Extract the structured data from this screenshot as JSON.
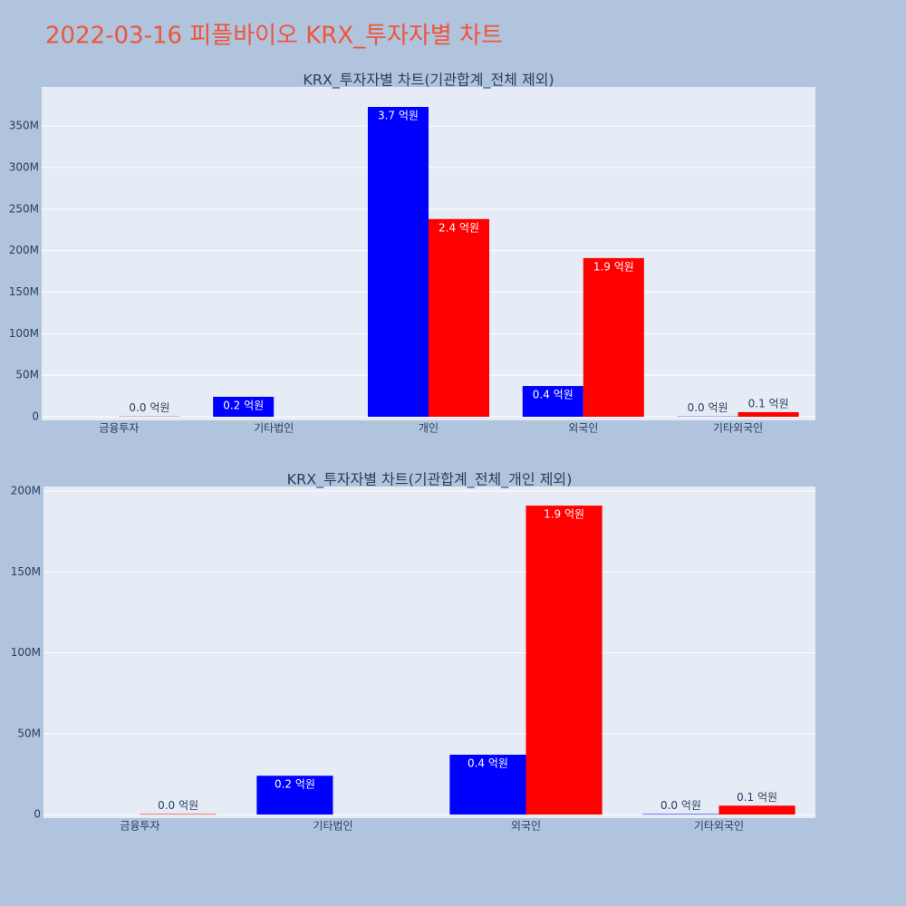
{
  "title": "2022-03-16 피플바이오 KRX_투자자별 차트",
  "chart_data": [
    {
      "type": "bar",
      "title": "KRX_투자자별 차트(기관합계_전체 제외)",
      "categories": [
        "금융투자",
        "기타법인",
        "개인",
        "외국인",
        "기타외국인"
      ],
      "series": [
        {
          "color": "#0000ff",
          "values": [
            null,
            24,
            373,
            37,
            0.3
          ],
          "value_labels": [
            null,
            "0.2 억원",
            "3.7 억원",
            "0.4 억원",
            "0.0 억원"
          ]
        },
        {
          "color": "#ff0000",
          "values": [
            0.3,
            null,
            238,
            191,
            5.5
          ],
          "value_labels": [
            "0.0 억원",
            null,
            "2.4 억원",
            "1.9 억원",
            "0.1 억원"
          ]
        }
      ],
      "ylim": [
        -4.4,
        397
      ],
      "yticks": [
        {
          "value": 0,
          "label": "0"
        },
        {
          "value": 50,
          "label": "50M"
        },
        {
          "value": 100,
          "label": "100M"
        },
        {
          "value": 150,
          "label": "150M"
        },
        {
          "value": 200,
          "label": "200M"
        },
        {
          "value": 250,
          "label": "250M"
        },
        {
          "value": 300,
          "label": "300M"
        },
        {
          "value": 350,
          "label": "350M"
        }
      ],
      "grid": true
    },
    {
      "type": "bar",
      "title": "KRX_투자자별 차트(기관합계_전체_개인 제외)",
      "categories": [
        "금융투자",
        "기타법인",
        "외국인",
        "기타외국인"
      ],
      "series": [
        {
          "color": "#0000ff",
          "values": [
            null,
            24,
            37,
            0.3
          ],
          "value_labels": [
            null,
            "0.2 억원",
            "0.4 억원",
            "0.0 억원"
          ]
        },
        {
          "color": "#ff0000",
          "values": [
            0.3,
            null,
            191,
            5.5
          ],
          "value_labels": [
            "0.0 억원",
            null,
            "1.9 억원",
            "0.1 억원"
          ]
        }
      ],
      "ylim": [
        -2.2,
        202.8
      ],
      "yticks": [
        {
          "value": 0,
          "label": "0"
        },
        {
          "value": 50,
          "label": "50M"
        },
        {
          "value": 100,
          "label": "100M"
        },
        {
          "value": 150,
          "label": "150M"
        },
        {
          "value": 200,
          "label": "200M"
        }
      ],
      "grid": true
    }
  ]
}
